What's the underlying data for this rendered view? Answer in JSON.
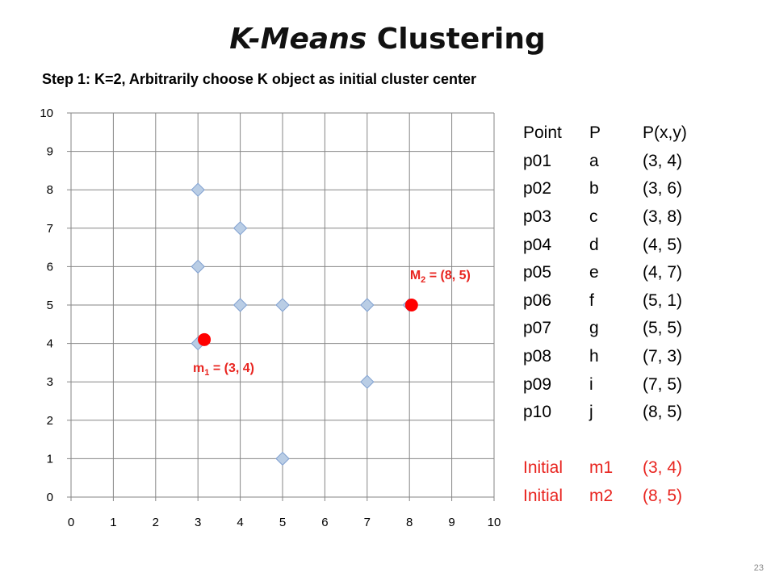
{
  "slide": {
    "title_italic": "K-Means",
    "title_rest": "Clustering",
    "subtitle": "Step 1: K=2, Arbitrarily choose K object as initial cluster center",
    "page_number": "23"
  },
  "table": {
    "headers": [
      "Point",
      "P",
      "P(x,y)"
    ],
    "rows": [
      [
        "p01",
        "a",
        "(3, 4)"
      ],
      [
        "p02",
        "b",
        "(3, 6)"
      ],
      [
        "p03",
        "c",
        "(3, 8)"
      ],
      [
        "p04",
        "d",
        "(4, 5)"
      ],
      [
        "p05",
        "e",
        "(4, 7)"
      ],
      [
        "p06",
        "f",
        "(5, 1)"
      ],
      [
        "p07",
        "g",
        "(5, 5)"
      ],
      [
        "p08",
        "h",
        "(7, 3)"
      ],
      [
        "p09",
        "i",
        "(7, 5)"
      ],
      [
        "p10",
        "j",
        "(8, 5)"
      ]
    ],
    "initial_rows": [
      [
        "Initial",
        "m1",
        "(3, 4)"
      ],
      [
        "Initial",
        "m2",
        "(8, 5)"
      ]
    ]
  },
  "chart_data": {
    "type": "scatter",
    "xlim": [
      0,
      10
    ],
    "ylim": [
      0,
      10
    ],
    "xticks": [
      0,
      1,
      2,
      3,
      4,
      5,
      6,
      7,
      8,
      9,
      10
    ],
    "yticks": [
      0,
      1,
      2,
      3,
      4,
      5,
      6,
      7,
      8,
      9,
      10
    ],
    "grid": true,
    "series": [
      {
        "marker": "diamond",
        "color": "#b9cde5",
        "edge_color": "#7f9fcf",
        "points": [
          {
            "x": 3,
            "y": 4
          },
          {
            "x": 3,
            "y": 6
          },
          {
            "x": 3,
            "y": 8
          },
          {
            "x": 4,
            "y": 5
          },
          {
            "x": 4,
            "y": 7
          },
          {
            "x": 5,
            "y": 1
          },
          {
            "x": 5,
            "y": 5
          },
          {
            "x": 7,
            "y": 3
          },
          {
            "x": 7,
            "y": 5
          },
          {
            "x": 8,
            "y": 5
          }
        ]
      }
    ],
    "centers": [
      {
        "id": "m1",
        "x": 3.15,
        "y": 4.1,
        "color": "#ff0000",
        "label_main": "m",
        "label_sub": "1",
        "label_rest": " = (3, 4)"
      },
      {
        "id": "m2",
        "x": 8.05,
        "y": 5.0,
        "color": "#ff0000",
        "label_main": "M",
        "label_sub": "2",
        "label_rest": " = (8, 5)"
      }
    ],
    "annotation_color": "#e8241f"
  }
}
